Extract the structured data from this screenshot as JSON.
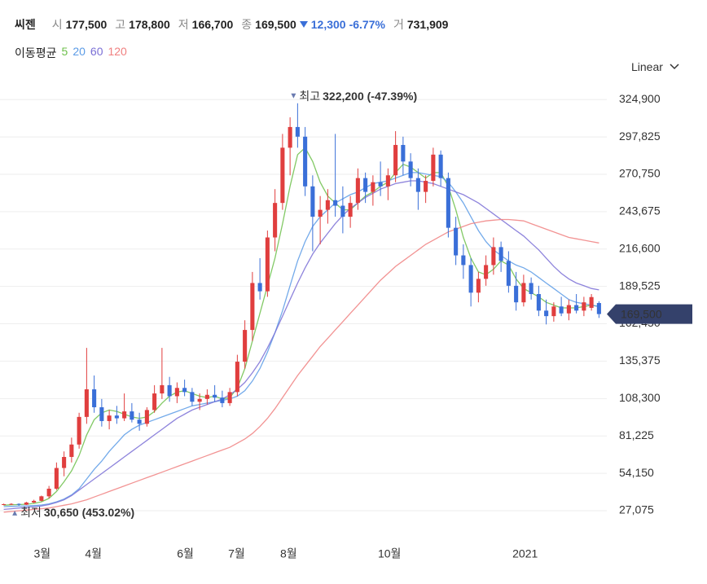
{
  "header": {
    "name": "씨젠",
    "open_label": "시",
    "open": "177,500",
    "high_label": "고",
    "high": "178,800",
    "low_label": "저",
    "low": "166,700",
    "close_label": "종",
    "close": "169,500",
    "change": "12,300",
    "change_pct": "-6.77%",
    "volume_label": "거",
    "volume": "731,909"
  },
  "scale_mode": "Linear",
  "chart_data": {
    "type": "candlestick",
    "up_color": "#e03e3e",
    "down_color": "#3a6fd8",
    "grid": true,
    "xlim": [
      0,
      80
    ],
    "ylim": [
      13500,
      338000
    ],
    "xticks": [
      {
        "value": 5.6,
        "label": "3월"
      },
      {
        "value": 12.4,
        "label": "4월"
      },
      {
        "value": 24.6,
        "label": "6월"
      },
      {
        "value": 31.4,
        "label": "7월"
      },
      {
        "value": 38.3,
        "label": "8월"
      },
      {
        "value": 51.7,
        "label": "10월"
      },
      {
        "value": 69.7,
        "label": "2021"
      }
    ],
    "yticks": [
      {
        "value": 27075,
        "label": "27,075"
      },
      {
        "value": 54150,
        "label": "54,150"
      },
      {
        "value": 81225,
        "label": "81,225"
      },
      {
        "value": 108300,
        "label": "108,300"
      },
      {
        "value": 135375,
        "label": "135,375"
      },
      {
        "value": 162450,
        "label": "162,450"
      },
      {
        "value": 189525,
        "label": "189,525"
      },
      {
        "value": 216600,
        "label": "216,600"
      },
      {
        "value": 243675,
        "label": "243,675"
      },
      {
        "value": 270750,
        "label": "270,750"
      },
      {
        "value": 297825,
        "label": "297,825"
      },
      {
        "value": 324900,
        "label": "324,900"
      }
    ],
    "ohlc": [
      [
        31500,
        32200,
        31000,
        31800
      ],
      [
        31800,
        32500,
        31200,
        32000
      ],
      [
        32000,
        32400,
        30650,
        31400
      ],
      [
        31400,
        33500,
        31200,
        33000
      ],
      [
        33000,
        35000,
        32500,
        34200
      ],
      [
        34200,
        38000,
        33800,
        37500
      ],
      [
        37500,
        45000,
        36000,
        43000
      ],
      [
        43000,
        62000,
        42000,
        58000
      ],
      [
        58000,
        70000,
        52000,
        66000
      ],
      [
        66000,
        80000,
        62000,
        75000
      ],
      [
        75000,
        98000,
        72000,
        95000
      ],
      [
        95000,
        145000,
        90000,
        115000
      ],
      [
        115000,
        125000,
        98000,
        102000
      ],
      [
        102000,
        108000,
        88000,
        92000
      ],
      [
        92000,
        100000,
        86000,
        96000
      ],
      [
        96000,
        103000,
        90000,
        94000
      ],
      [
        94000,
        112000,
        92000,
        99000
      ],
      [
        99000,
        105000,
        91000,
        93000
      ],
      [
        93000,
        98000,
        85000,
        90000
      ],
      [
        90000,
        102000,
        88000,
        100000
      ],
      [
        100000,
        118000,
        98000,
        112000
      ],
      [
        112000,
        145000,
        108000,
        118000
      ],
      [
        118000,
        124000,
        106000,
        110000
      ],
      [
        110000,
        120000,
        105000,
        116000
      ],
      [
        116000,
        122000,
        110000,
        113000
      ],
      [
        113000,
        116000,
        103000,
        106000
      ],
      [
        106000,
        112000,
        100000,
        108000
      ],
      [
        108000,
        115000,
        104000,
        111000
      ],
      [
        111000,
        118000,
        106000,
        109000
      ],
      [
        109000,
        114000,
        102000,
        105000
      ],
      [
        105000,
        116000,
        103000,
        113000
      ],
      [
        113000,
        140000,
        110000,
        135000
      ],
      [
        135000,
        165000,
        130000,
        158000
      ],
      [
        158000,
        200000,
        150000,
        192000
      ],
      [
        192000,
        210000,
        180000,
        186000
      ],
      [
        186000,
        230000,
        182000,
        225000
      ],
      [
        225000,
        260000,
        215000,
        250000
      ],
      [
        250000,
        300000,
        245000,
        290000
      ],
      [
        290000,
        312000,
        270000,
        305000
      ],
      [
        305000,
        322200,
        290000,
        298000
      ],
      [
        298000,
        305000,
        255000,
        262000
      ],
      [
        262000,
        270000,
        215000,
        240000
      ],
      [
        240000,
        255000,
        220000,
        245000
      ],
      [
        245000,
        260000,
        235000,
        252000
      ],
      [
        252000,
        300000,
        240000,
        248000
      ],
      [
        248000,
        262000,
        228000,
        240000
      ],
      [
        240000,
        255000,
        232000,
        250000
      ],
      [
        250000,
        275000,
        245000,
        268000
      ],
      [
        268000,
        272000,
        250000,
        258000
      ],
      [
        258000,
        270000,
        248000,
        265000
      ],
      [
        265000,
        280000,
        255000,
        262000
      ],
      [
        262000,
        275000,
        252000,
        270000
      ],
      [
        270000,
        302000,
        265000,
        292000
      ],
      [
        292000,
        298000,
        270000,
        280000
      ],
      [
        280000,
        286000,
        262000,
        268000
      ],
      [
        268000,
        275000,
        245000,
        258000
      ],
      [
        258000,
        270000,
        250000,
        266000
      ],
      [
        266000,
        290000,
        262000,
        285000
      ],
      [
        285000,
        288000,
        262000,
        268000
      ],
      [
        268000,
        272000,
        225000,
        232000
      ],
      [
        232000,
        240000,
        205000,
        212000
      ],
      [
        212000,
        220000,
        195000,
        205000
      ],
      [
        205000,
        210000,
        175000,
        185000
      ],
      [
        185000,
        200000,
        178000,
        195000
      ],
      [
        195000,
        212000,
        190000,
        205000
      ],
      [
        205000,
        225000,
        198000,
        218000
      ],
      [
        218000,
        222000,
        200000,
        208000
      ],
      [
        208000,
        215000,
        185000,
        190000
      ],
      [
        190000,
        200000,
        172000,
        178000
      ],
      [
        178000,
        198000,
        175000,
        192000
      ],
      [
        192000,
        196000,
        180000,
        184000
      ],
      [
        184000,
        190000,
        168000,
        172000
      ],
      [
        172000,
        180000,
        162000,
        168000
      ],
      [
        168000,
        178000,
        164000,
        175000
      ],
      [
        175000,
        182000,
        168000,
        170000
      ],
      [
        170000,
        180000,
        165000,
        176000
      ],
      [
        176000,
        184000,
        170000,
        172000
      ],
      [
        172000,
        182000,
        168000,
        178000
      ],
      [
        174000,
        184000,
        172000,
        181800
      ],
      [
        177500,
        178800,
        166700,
        169500
      ]
    ],
    "moving_average_label": "이동평균",
    "moving_averages": [
      {
        "name": "5",
        "color": "#6cbf4a",
        "values": [
          31000,
          31400,
          31500,
          31800,
          32300,
          33500,
          36000,
          41000,
          48000,
          56000,
          67000,
          82000,
          93000,
          98000,
          100000,
          99000,
          97000,
          95000,
          94000,
          95000,
          99000,
          105000,
          110000,
          113000,
          114000,
          112000,
          110000,
          109000,
          110000,
          108000,
          109000,
          116000,
          130000,
          150000,
          170000,
          190000,
          210000,
          235000,
          262000,
          285000,
          290000,
          280000,
          265000,
          255000,
          250000,
          245000,
          245000,
          250000,
          255000,
          258000,
          262000,
          265000,
          272000,
          278000,
          276000,
          272000,
          268000,
          272000,
          272000,
          262000,
          245000,
          225000,
          210000,
          200000,
          198000,
          202000,
          208000,
          205000,
          195000,
          188000,
          185000,
          182000,
          178000,
          176000,
          174000,
          174000,
          174000,
          175000,
          176000,
          175000
        ]
      },
      {
        "name": "20",
        "color": "#5b9be6",
        "values": [
          30000,
          30200,
          30400,
          30600,
          30800,
          31200,
          32000,
          33500,
          35500,
          38500,
          43000,
          50000,
          57000,
          63000,
          70000,
          76000,
          82000,
          86000,
          89000,
          91000,
          93000,
          95000,
          97000,
          99000,
          101000,
          103000,
          104000,
          105000,
          106000,
          107000,
          108000,
          110000,
          114000,
          121000,
          130000,
          142000,
          156000,
          172000,
          190000,
          208000,
          222000,
          233000,
          240000,
          245000,
          250000,
          253000,
          256000,
          258000,
          261000,
          264000,
          265000,
          266000,
          268000,
          270000,
          272000,
          272000,
          271000,
          270000,
          269000,
          265000,
          258000,
          250000,
          240000,
          230000,
          222000,
          216000,
          212000,
          208000,
          205000,
          203000,
          200000,
          196000,
          192000,
          188000,
          184000,
          180000,
          178000,
          177000,
          176000,
          175000
        ]
      },
      {
        "name": "60",
        "color": "#7a6fd6",
        "values": [
          28000,
          28500,
          29000,
          29500,
          30000,
          30500,
          31500,
          33000,
          35000,
          38000,
          42000,
          46000,
          50000,
          54000,
          58000,
          62000,
          66000,
          70000,
          74000,
          78000,
          82000,
          86000,
          90000,
          94000,
          97000,
          100000,
          102000,
          104000,
          106000,
          108000,
          111000,
          115000,
          120000,
          127000,
          135000,
          145000,
          156000,
          168000,
          180000,
          192000,
          203000,
          213000,
          221000,
          228000,
          235000,
          241000,
          246000,
          250000,
          254000,
          257000,
          260000,
          262000,
          264000,
          265000,
          266000,
          266000,
          265000,
          264000,
          262000,
          260000,
          258000,
          256000,
          253000,
          250000,
          246000,
          242000,
          238000,
          234000,
          230000,
          226000,
          221000,
          216000,
          210000,
          204000,
          199000,
          195000,
          192000,
          190000,
          188000,
          187000
        ]
      },
      {
        "name": "120",
        "color": "#f08080",
        "values": [
          26000,
          26500,
          27000,
          27500,
          28000,
          28500,
          29000,
          30000,
          31000,
          32000,
          33500,
          35000,
          37000,
          39000,
          41000,
          43000,
          45000,
          47000,
          49000,
          51000,
          53000,
          55000,
          57000,
          59000,
          61000,
          63000,
          65000,
          67000,
          69000,
          71000,
          73000,
          76000,
          79000,
          83000,
          88000,
          94000,
          101000,
          109000,
          117000,
          125000,
          132000,
          139000,
          146000,
          152000,
          158000,
          164000,
          170000,
          176000,
          182000,
          188000,
          194000,
          199000,
          204000,
          208000,
          212000,
          216000,
          220000,
          223000,
          226000,
          229000,
          231000,
          233000,
          235000,
          236000,
          237000,
          237500,
          238000,
          238000,
          237500,
          237000,
          235000,
          233000,
          231000,
          229000,
          227000,
          225000,
          224000,
          223000,
          222000,
          221000
        ]
      }
    ],
    "annotations": [
      {
        "index": 39,
        "value": 322200,
        "label": "최고",
        "value_label": "322,200 (-47.39%)",
        "position": "top"
      },
      {
        "index": 2,
        "value": 30650,
        "label": "최저",
        "value_label": "30,650 (453.02%)",
        "position": "bottom"
      }
    ],
    "price_tag": {
      "value": 169500,
      "label": "169,500",
      "color": "#34416b"
    }
  }
}
